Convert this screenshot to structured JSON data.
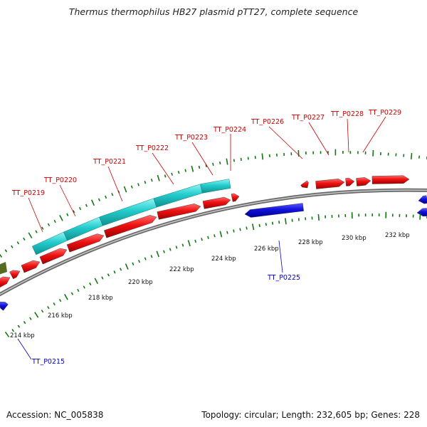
{
  "title": "Thermus thermophilus HB27 plasmid pTT27, complete sequence",
  "accession": "Accession: NC_005838",
  "summary": "Topology: circular; Length: 232,605 bp; Genes: 228",
  "colors": {
    "forward_gene": "#ee1111",
    "reverse_gene": "#1111dd",
    "cds_band": "#22cccc",
    "other_feature": "#556b1f",
    "ticks": "#117711",
    "backbone": "#888888",
    "label_forward": "#cc0000",
    "label_reverse": "#0000cc"
  },
  "scale_labels": [
    "214 kbp",
    "216 kbp",
    "218 kbp",
    "220 kbp",
    "222 kbp",
    "224 kbp",
    "226 kbp",
    "228 kbp",
    "230 kbp",
    "232 kbp"
  ],
  "gene_labels": {
    "forward": [
      "TT_P0219",
      "TT_P0220",
      "TT_P0221",
      "TT_P0222",
      "TT_P0223",
      "TT_P0224",
      "TT_P0226",
      "TT_P0227",
      "TT_P0228",
      "TT_P0229"
    ],
    "reverse": [
      "TT_P0215",
      "TT_P0225"
    ]
  }
}
